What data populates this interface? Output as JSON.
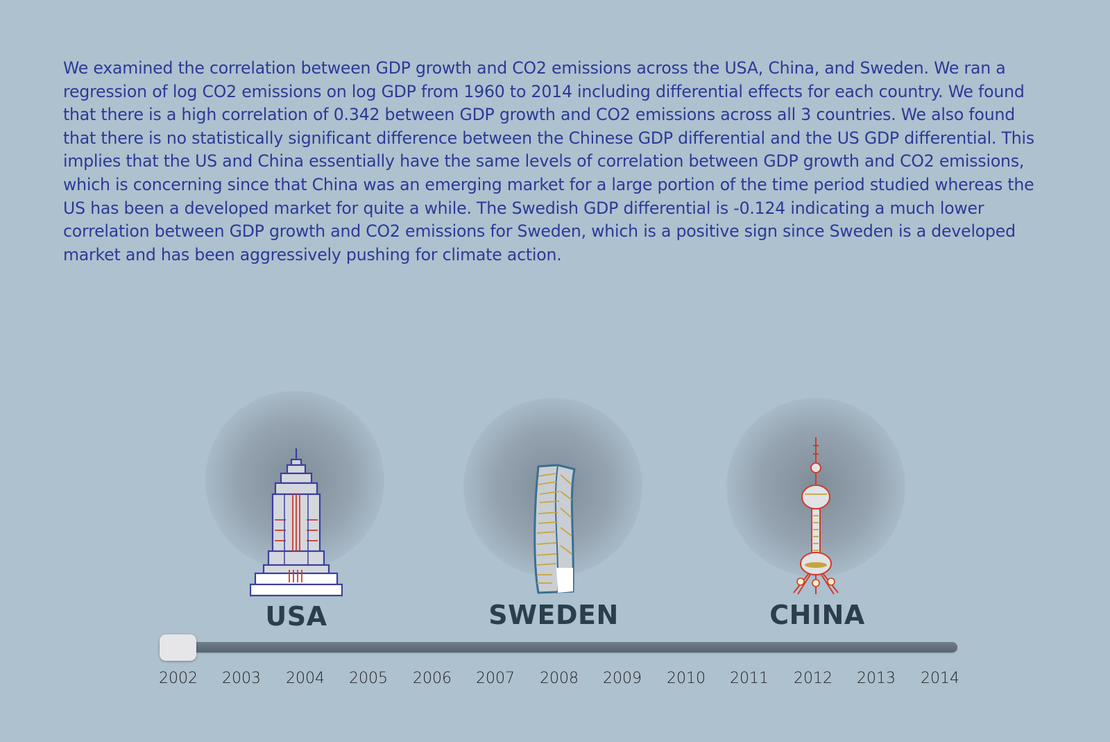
{
  "description": "We examined the correlation between GDP growth and CO2 emissions across the USA, China, and Sweden. We ran a regression of log CO2 emissions on log GDP from 1960 to 2014 including differential effects for each country. We found that there is a high correlation of 0.342 between GDP growth and CO2 emissions across all 3 countries. We also found that there is no statistically significant difference between the Chinese GDP differential and the US GDP differential. This implies that the US and China essentially have the same levels of correlation between GDP growth and CO2 emissions, which is concerning since that China was an emerging market for a large portion of the time period studied whereas the US has been a developed market for quite a while. The Swedish GDP differential is -0.124 indicating a much lower correlation between GDP growth and CO2 emissions for Sweden, which is a positive sign since Sweden is a developed market and has been aggressively pushing for climate action.",
  "countries": [
    {
      "label": "USA",
      "icon": "empire-state-building-icon"
    },
    {
      "label": "SWEDEN",
      "icon": "turning-torso-icon"
    },
    {
      "label": "CHINA",
      "icon": "oriental-pearl-tower-icon"
    }
  ],
  "slider": {
    "years": [
      "2002",
      "2003",
      "2004",
      "2005",
      "2006",
      "2007",
      "2008",
      "2009",
      "2010",
      "2011",
      "2012",
      "2013",
      "2014"
    ],
    "selected": "2002",
    "selected_fraction": 0
  },
  "colors": {
    "background": "#adc1cf",
    "text": "#2c3a96",
    "label": "#2a3f4c",
    "track": "#5e6d78",
    "handle": "#e6e6e8"
  }
}
